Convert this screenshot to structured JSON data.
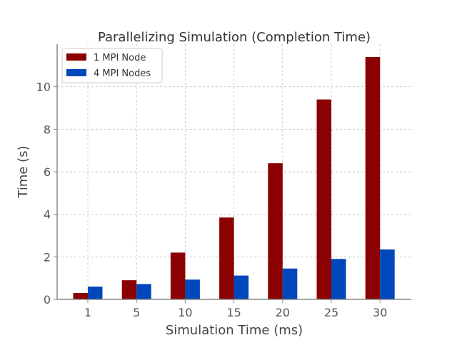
{
  "chart_data": {
    "type": "bar",
    "title": "Parallelizing Simulation (Completion Time)",
    "xlabel": "Simulation Time (ms)",
    "ylabel": "Time (s)",
    "categories": [
      "1",
      "5",
      "10",
      "15",
      "20",
      "25",
      "30"
    ],
    "series": [
      {
        "name": "1 MPI Node",
        "color": "#8b0000",
        "values": [
          0.3,
          0.9,
          2.2,
          3.85,
          6.4,
          9.4,
          11.4
        ]
      },
      {
        "name": "4 MPI Nodes",
        "color": "#0047bb",
        "values": [
          0.6,
          0.72,
          0.93,
          1.12,
          1.45,
          1.9,
          2.35
        ]
      }
    ],
    "ylim": [
      0,
      12
    ],
    "yticks": [
      0,
      2,
      4,
      6,
      8,
      10
    ],
    "grid": true,
    "legend_position": "top-left"
  }
}
